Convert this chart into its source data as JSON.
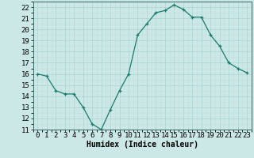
{
  "x": [
    0,
    1,
    2,
    3,
    4,
    5,
    6,
    7,
    8,
    9,
    10,
    11,
    12,
    13,
    14,
    15,
    16,
    17,
    18,
    19,
    20,
    21,
    22,
    23
  ],
  "y": [
    16.0,
    15.8,
    14.5,
    14.2,
    14.2,
    13.0,
    11.5,
    11.0,
    12.8,
    14.5,
    16.0,
    19.5,
    20.5,
    21.5,
    21.7,
    22.2,
    21.8,
    21.1,
    21.1,
    19.5,
    18.5,
    17.0,
    16.5,
    16.1
  ],
  "line_color": "#1a7a6e",
  "marker": "+",
  "bg_color": "#cce8e6",
  "grid_major_color": "#aad4d2",
  "grid_minor_color": "#bddedd",
  "xlabel": "Humidex (Indice chaleur)",
  "ylim": [
    11,
    22.5
  ],
  "xlim": [
    -0.5,
    23.5
  ],
  "yticks": [
    11,
    12,
    13,
    14,
    15,
    16,
    17,
    18,
    19,
    20,
    21,
    22
  ],
  "xtick_labels": [
    "0",
    "1",
    "2",
    "3",
    "4",
    "5",
    "6",
    "7",
    "8",
    "9",
    "10",
    "11",
    "12",
    "13",
    "14",
    "15",
    "16",
    "17",
    "18",
    "19",
    "20",
    "21",
    "22",
    "23"
  ],
  "label_fontsize": 7,
  "tick_fontsize": 6.5
}
